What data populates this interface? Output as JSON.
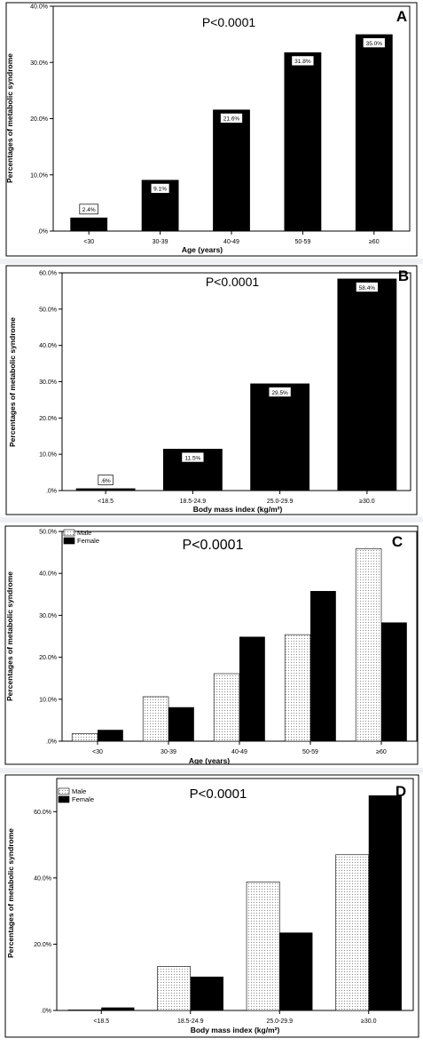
{
  "chart_data": [
    {
      "id": "A",
      "type": "bar",
      "panel_letter": "A",
      "annotation": "P<0.0001",
      "ylabel": "Percentages of metabolic syndrome",
      "xlabel": "Age (years)",
      "ylim": [
        0,
        40
      ],
      "yticks": [
        0,
        10,
        20,
        30,
        40
      ],
      "ytick_labels": [
        ".0%",
        "10.0%",
        "20.0%",
        "30.0%",
        "40.0%"
      ],
      "categories": [
        "<30",
        "30-39",
        "40-49",
        "50-59",
        "≥60"
      ],
      "values": [
        2.4,
        9.1,
        21.6,
        31.8,
        35.0
      ],
      "data_labels": [
        "2.4%",
        "9.1%",
        "21.6%",
        "31.8%",
        "35.0%"
      ]
    },
    {
      "id": "B",
      "type": "bar",
      "panel_letter": "B",
      "annotation": "P<0.0001",
      "ylabel": "Percentages of metabolic syndrome",
      "xlabel": "Body mass index (kg/m²)",
      "ylim": [
        0,
        60
      ],
      "yticks": [
        0,
        10,
        20,
        30,
        40,
        50,
        60
      ],
      "ytick_labels": [
        ".0%",
        "10.0%",
        "20.0%",
        "30.0%",
        "40.0%",
        "50.0%",
        "60.0%"
      ],
      "categories": [
        "<18.5",
        "18.5-24.9",
        "25.0-29.9",
        "≥30.0"
      ],
      "values": [
        0.6,
        11.5,
        29.5,
        58.4
      ],
      "data_labels": [
        ".6%",
        "11.5%",
        "29.5%",
        "58.4%"
      ]
    },
    {
      "id": "C",
      "type": "bar",
      "panel_letter": "C",
      "annotation": "P<0.0001",
      "ylabel": "Percentages of metabolic syndrome",
      "xlabel": "Age (years)",
      "ylim": [
        0,
        50
      ],
      "yticks": [
        0,
        10,
        20,
        30,
        40,
        50
      ],
      "ytick_labels": [
        ".0%",
        "10.0%",
        "20.0%",
        "30.0%",
        "40.0%",
        "50.0%"
      ],
      "categories": [
        "<30",
        "30-39",
        "40-49",
        "50-59",
        "≥60"
      ],
      "series": [
        {
          "name": "Male",
          "values": [
            1.8,
            10.6,
            16.1,
            25.4,
            45.9
          ]
        },
        {
          "name": "Female",
          "values": [
            2.7,
            8.1,
            24.9,
            35.8,
            28.3
          ]
        }
      ]
    },
    {
      "id": "D",
      "type": "bar",
      "panel_letter": "D",
      "annotation": "P<0.0001",
      "ylabel": "Percentages of metabolic syndrome",
      "xlabel": "Body mass index (kg/m²)",
      "ylim": [
        0,
        70
      ],
      "yticks": [
        0,
        20,
        40,
        60
      ],
      "ytick_labels": [
        ".0%",
        "20.0%",
        "40.0%",
        "60.0%"
      ],
      "categories": [
        "<18.5",
        "18.5-24.9",
        "25.0-29.9",
        "≥30.0"
      ],
      "series": [
        {
          "name": "Male",
          "values": [
            0.2,
            13.3,
            38.8,
            47.0
          ]
        },
        {
          "name": "Female",
          "values": [
            0.9,
            10.2,
            23.5,
            64.9
          ]
        }
      ]
    }
  ],
  "colors": {
    "female_bar": "#000000",
    "male_bar": "#ffffff",
    "male_stipple": "#8a8a8a",
    "axis": "#000000",
    "panel_border": "#000000",
    "separator": "#eef0f3"
  }
}
